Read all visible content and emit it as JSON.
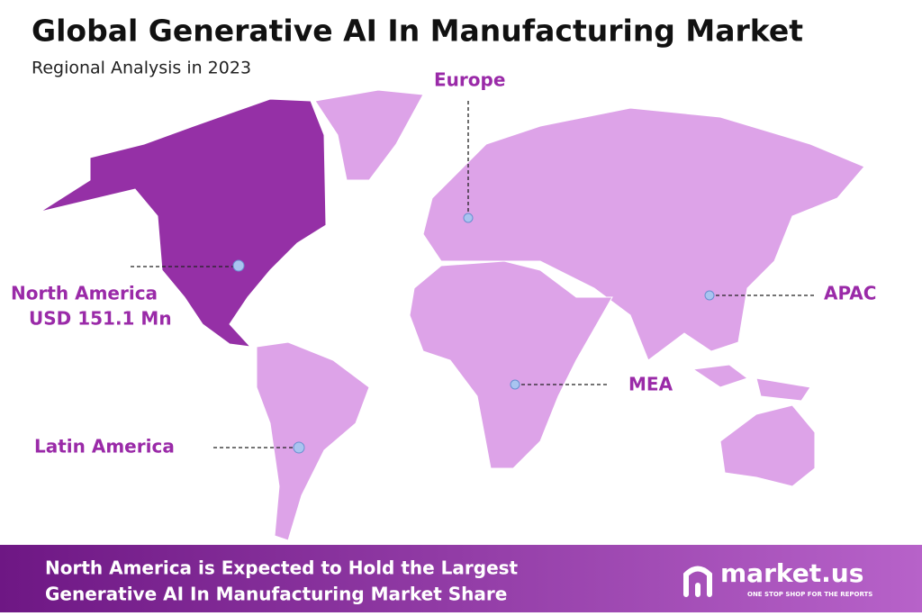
{
  "header": {
    "title": "Global Generative AI In Manufacturing Market",
    "subtitle": "Regional Analysis in 2023"
  },
  "regions": [
    {
      "name": "North America",
      "value": "USD 151.1 Mn"
    },
    {
      "name": "Europe"
    },
    {
      "name": "APAC"
    },
    {
      "name": "MEA"
    },
    {
      "name": "Latin America"
    }
  ],
  "footer": {
    "lines": [
      "North America is Expected to Hold the Largest",
      "Generative AI In Manufacturing Market Share"
    ],
    "brand": "market.us",
    "tagline": "ONE STOP SHOP FOR THE REPORTS"
  }
}
